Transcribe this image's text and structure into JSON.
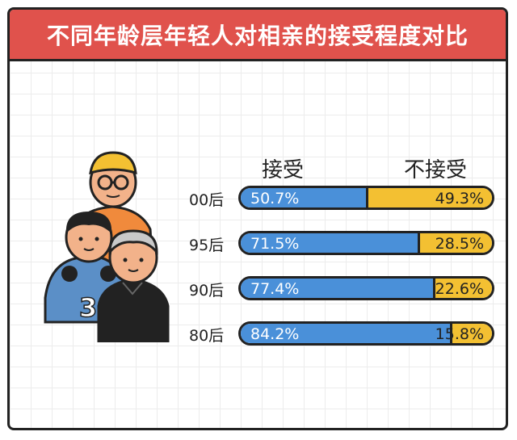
{
  "chart_data": {
    "type": "bar",
    "title": "不同年龄层年轻人对相亲的接受程度对比",
    "categories": [
      "00后",
      "95后",
      "90后",
      "80后"
    ],
    "series": [
      {
        "name": "接受",
        "values": [
          50.7,
          71.5,
          77.4,
          84.2
        ],
        "labels": [
          "50.7%",
          "71.5%",
          "77.4%",
          "84.2%"
        ]
      },
      {
        "name": "不接受",
        "values": [
          49.3,
          28.5,
          22.6,
          15.8
        ],
        "labels": [
          "49.3%",
          "28.5%",
          "22.6%",
          "15.8%"
        ]
      }
    ],
    "stacked": true,
    "orientation": "horizontal",
    "xlim": [
      0,
      100
    ],
    "grid": false,
    "legend_position": "top"
  },
  "colors": {
    "accept": "#4a90d9",
    "reject": "#f3c032",
    "title_bg": "#e0524c"
  },
  "illustration": {
    "jersey_number": "3",
    "icon": "young-people-group-icon"
  }
}
